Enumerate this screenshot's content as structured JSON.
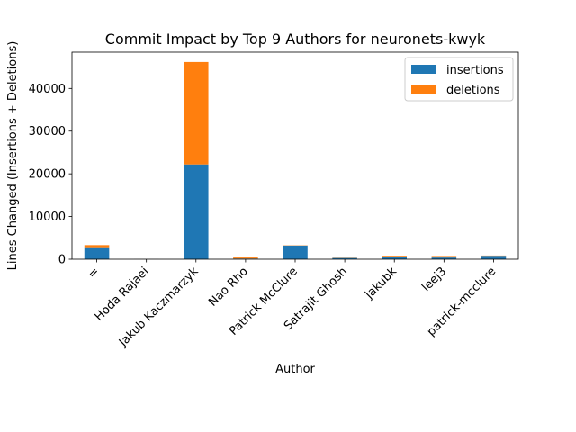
{
  "chart_data": {
    "type": "bar",
    "stacked": true,
    "title": "Commit Impact by Top 9 Authors for neuronets-kwyk",
    "xlabel": "Author",
    "ylabel": "Lines Changed (Insertions + Deletions)",
    "categories": [
      "=",
      "Hoda Rajaei",
      "Jakub Kaczmarzyk",
      "Nao Rho",
      "Patrick McClure",
      "Satrajit Ghosh",
      "jakubk",
      "leej3",
      "patrick-mcclure"
    ],
    "series": [
      {
        "name": "insertions",
        "color": "#1f77b4",
        "values": [
          2600,
          20,
          22200,
          150,
          3200,
          300,
          500,
          400,
          800
        ]
      },
      {
        "name": "deletions",
        "color": "#ff7f0e",
        "values": [
          700,
          10,
          24000,
          250,
          60,
          60,
          300,
          350,
          60
        ]
      }
    ],
    "ylim": [
      0,
      48500
    ],
    "yticks": [
      0,
      10000,
      20000,
      30000,
      40000
    ],
    "grid": false,
    "legend_position": "top-right"
  }
}
